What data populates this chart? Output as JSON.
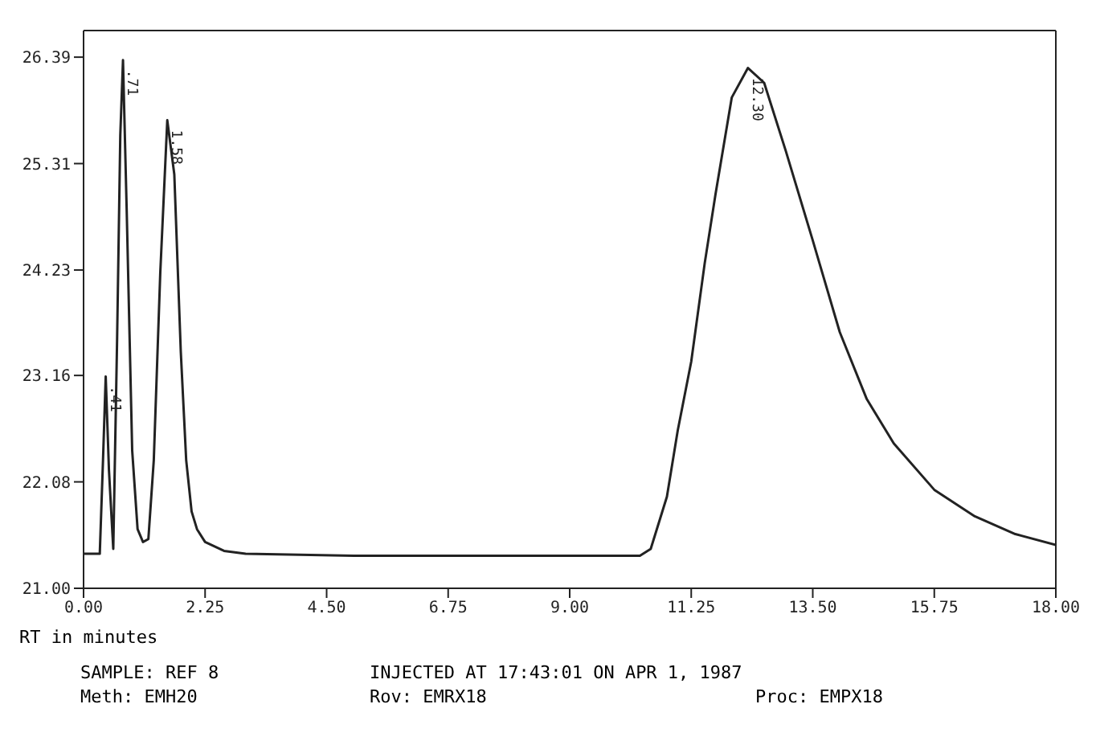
{
  "chart_data": {
    "type": "line",
    "xlabel": "RT in minutes",
    "x": [
      0,
      0.3,
      0.36,
      0.41,
      0.47,
      0.55,
      0.62,
      0.68,
      0.73,
      0.8,
      0.9,
      1.0,
      1.1,
      1.2,
      1.3,
      1.42,
      1.55,
      1.68,
      1.8,
      1.9,
      2.0,
      2.1,
      2.25,
      2.6,
      3.0,
      5.0,
      7.0,
      9.0,
      10.3,
      10.5,
      10.8,
      11.0,
      11.25,
      11.5,
      11.7,
      12.0,
      12.3,
      12.6,
      13.0,
      13.5,
      14.0,
      14.5,
      15.0,
      15.75,
      16.5,
      17.25,
      18.0
    ],
    "series": [
      {
        "color": "#222222",
        "values": [
          21.35,
          21.35,
          22.3,
          23.15,
          22.2,
          21.4,
          23.5,
          25.6,
          26.36,
          24.8,
          22.4,
          21.6,
          21.47,
          21.5,
          22.3,
          24.2,
          25.75,
          25.2,
          23.4,
          22.3,
          21.78,
          21.6,
          21.47,
          21.38,
          21.35,
          21.33,
          21.33,
          21.33,
          21.33,
          21.4,
          21.93,
          22.6,
          23.3,
          24.3,
          25.0,
          25.98,
          26.28,
          26.13,
          25.44,
          24.53,
          23.6,
          22.92,
          22.47,
          22.0,
          21.73,
          21.55,
          21.44
        ]
      }
    ],
    "xlim": [
      0,
      18
    ],
    "xticks": [
      {
        "value": 0,
        "label": "0.00"
      },
      2.25,
      {
        "value": 4.5,
        "label": "4.50"
      },
      6.75,
      {
        "value": 9,
        "label": "9.00"
      },
      11.25,
      {
        "value": 13.5,
        "label": "13.50"
      },
      15.75,
      {
        "value": 18,
        "label": "18.00"
      }
    ],
    "ylim": [
      21,
      26.66
    ],
    "yticks": [
      {
        "value": 21,
        "label": "21.00"
      },
      22.08,
      23.16,
      24.23,
      25.31,
      26.39
    ],
    "marker": "none",
    "line_style": "solid",
    "annotations": [
      {
        "text": ".41",
        "x": 0.41,
        "y": 23.15
      },
      {
        "text": ".71",
        "x": 0.73,
        "y": 26.36
      },
      {
        "text": "1.58",
        "x": 1.55,
        "y": 25.75
      },
      {
        "text": "12.30",
        "x": 12.3,
        "y": 26.28
      },
      "SAMPLE: REF 8",
      "INJECTED AT 17:43:01 ON APR 1, 1987",
      "Meth: EMH20",
      "Rov: EMRX18",
      "Proc: EMPX18"
    ]
  }
}
